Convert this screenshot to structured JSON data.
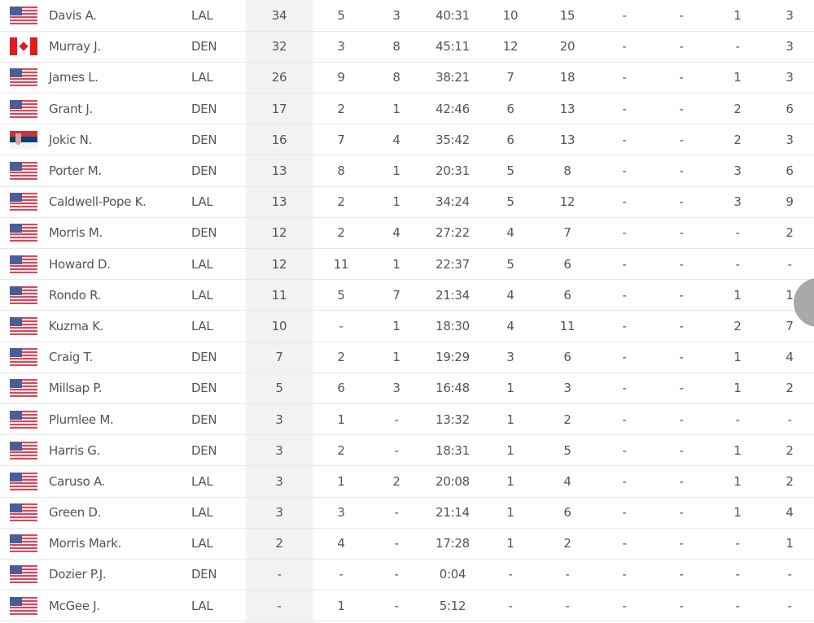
{
  "rows": [
    {
      "flag": "us",
      "name": "Davis A.",
      "team": "LAL",
      "stats": [
        "34",
        "5",
        "3",
        "40:31",
        "10",
        "15",
        "-",
        "-",
        "1",
        "3"
      ]
    },
    {
      "flag": "ca",
      "name": "Murray J.",
      "team": "DEN",
      "stats": [
        "32",
        "3",
        "8",
        "45:11",
        "12",
        "20",
        "-",
        "-",
        "-",
        "3"
      ]
    },
    {
      "flag": "us",
      "name": "James L.",
      "team": "LAL",
      "stats": [
        "26",
        "9",
        "8",
        "38:21",
        "7",
        "18",
        "-",
        "-",
        "1",
        "3"
      ]
    },
    {
      "flag": "us",
      "name": "Grant J.",
      "team": "DEN",
      "stats": [
        "17",
        "2",
        "1",
        "42:46",
        "6",
        "13",
        "-",
        "-",
        "2",
        "6"
      ]
    },
    {
      "flag": "rs",
      "name": "Jokic N.",
      "team": "DEN",
      "stats": [
        "16",
        "7",
        "4",
        "35:42",
        "6",
        "13",
        "-",
        "-",
        "2",
        "3"
      ]
    },
    {
      "flag": "us",
      "name": "Porter M.",
      "team": "DEN",
      "stats": [
        "13",
        "8",
        "1",
        "20:31",
        "5",
        "8",
        "-",
        "-",
        "3",
        "6"
      ]
    },
    {
      "flag": "us",
      "name": "Caldwell-Pope K.",
      "team": "LAL",
      "stats": [
        "13",
        "2",
        "1",
        "34:24",
        "5",
        "12",
        "-",
        "-",
        "3",
        "9"
      ]
    },
    {
      "flag": "us",
      "name": "Morris M.",
      "team": "DEN",
      "stats": [
        "12",
        "2",
        "4",
        "27:22",
        "4",
        "7",
        "-",
        "-",
        "-",
        "2"
      ]
    },
    {
      "flag": "us",
      "name": "Howard D.",
      "team": "LAL",
      "stats": [
        "12",
        "11",
        "1",
        "22:37",
        "5",
        "6",
        "-",
        "-",
        "-",
        "-"
      ]
    },
    {
      "flag": "us",
      "name": "Rondo R.",
      "team": "LAL",
      "stats": [
        "11",
        "5",
        "7",
        "21:34",
        "4",
        "6",
        "-",
        "-",
        "1",
        "1"
      ]
    },
    {
      "flag": "us",
      "name": "Kuzma K.",
      "team": "LAL",
      "stats": [
        "10",
        "-",
        "1",
        "18:30",
        "4",
        "11",
        "-",
        "-",
        "2",
        "7"
      ]
    },
    {
      "flag": "us",
      "name": "Craig T.",
      "team": "DEN",
      "stats": [
        "7",
        "2",
        "1",
        "19:29",
        "3",
        "6",
        "-",
        "-",
        "1",
        "4"
      ]
    },
    {
      "flag": "us",
      "name": "Millsap P.",
      "team": "DEN",
      "stats": [
        "5",
        "6",
        "3",
        "16:48",
        "1",
        "3",
        "-",
        "-",
        "1",
        "2"
      ]
    },
    {
      "flag": "us",
      "name": "Plumlee M.",
      "team": "DEN",
      "stats": [
        "3",
        "1",
        "-",
        "13:32",
        "1",
        "2",
        "-",
        "-",
        "-",
        "-"
      ]
    },
    {
      "flag": "us",
      "name": "Harris G.",
      "team": "DEN",
      "stats": [
        "3",
        "2",
        "-",
        "18:31",
        "1",
        "5",
        "-",
        "-",
        "1",
        "2"
      ]
    },
    {
      "flag": "us",
      "name": "Caruso A.",
      "team": "LAL",
      "stats": [
        "3",
        "1",
        "2",
        "20:08",
        "1",
        "4",
        "-",
        "-",
        "1",
        "2"
      ]
    },
    {
      "flag": "us",
      "name": "Green D.",
      "team": "LAL",
      "stats": [
        "3",
        "3",
        "-",
        "21:14",
        "1",
        "6",
        "-",
        "-",
        "1",
        "4"
      ]
    },
    {
      "flag": "us",
      "name": "Morris Mark.",
      "team": "LAL",
      "stats": [
        "2",
        "4",
        "-",
        "17:28",
        "1",
        "2",
        "-",
        "-",
        "-",
        "1"
      ]
    },
    {
      "flag": "us",
      "name": "Dozier P.J.",
      "team": "DEN",
      "stats": [
        "-",
        "-",
        "-",
        "0:04",
        "-",
        "-",
        "-",
        "-",
        "-",
        "-"
      ]
    },
    {
      "flag": "us",
      "name": "McGee J.",
      "team": "LAL",
      "stats": [
        "-",
        "1",
        "-",
        "5:12",
        "-",
        "-",
        "-",
        "-",
        "-",
        "-"
      ]
    }
  ]
}
